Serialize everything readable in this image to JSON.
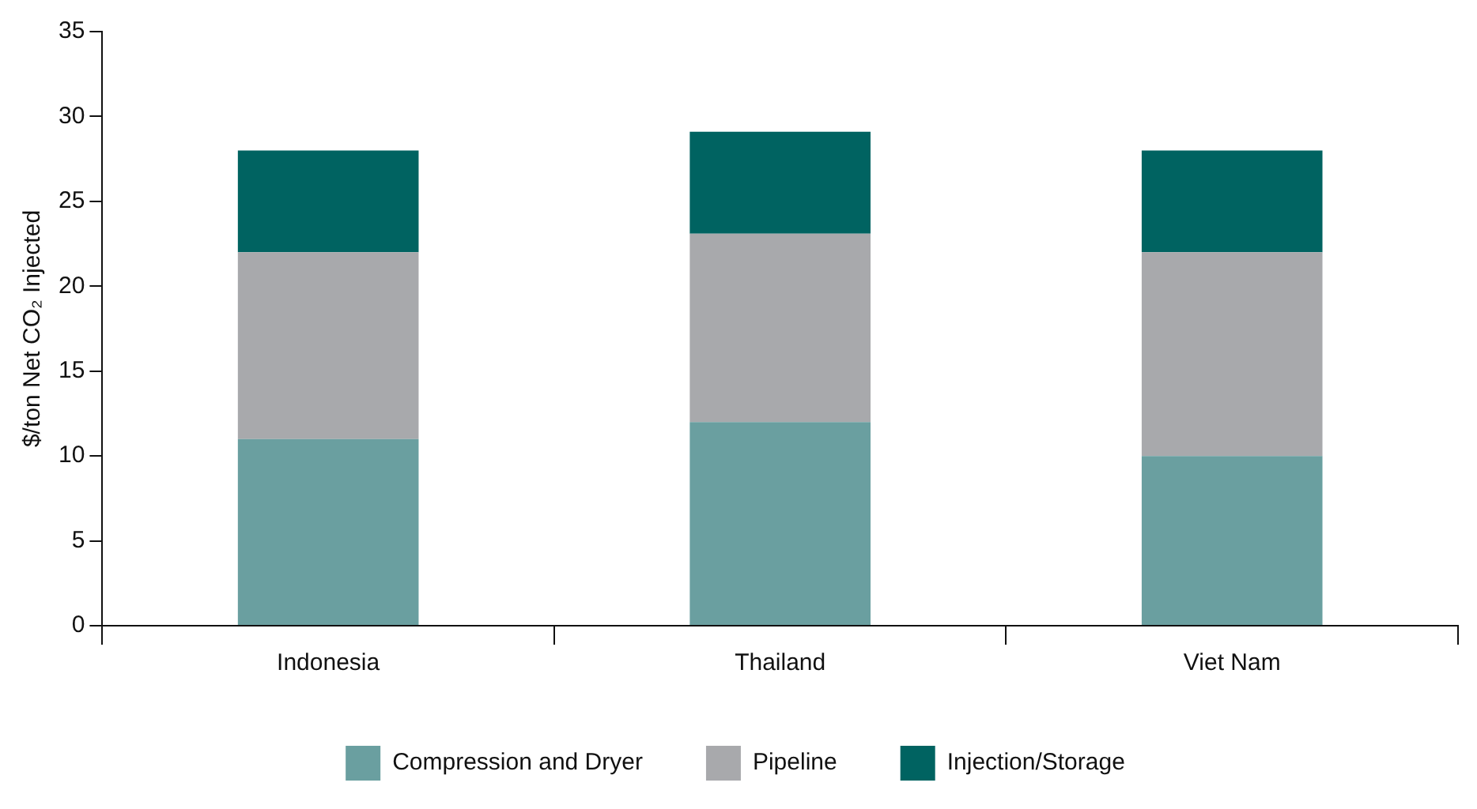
{
  "chart_data": {
    "type": "bar",
    "stacked": true,
    "ylabel": "$/ton Net CO₂ Injected",
    "categories": [
      "Indonesia",
      "Thailand",
      "Viet Nam"
    ],
    "series": [
      {
        "name": "Compression and Dryer",
        "color": "#6a9fa0",
        "values": [
          11,
          12,
          10
        ]
      },
      {
        "name": "Pipeline",
        "color": "#a8a9ac",
        "values": [
          11,
          11.1,
          12
        ]
      },
      {
        "name": "Injection/Storage",
        "color": "#006361",
        "values": [
          6,
          6,
          6
        ]
      }
    ],
    "ylim": [
      0,
      35
    ],
    "yticks": [
      0,
      5,
      10,
      15,
      20,
      25,
      30,
      35
    ],
    "grid": false,
    "legend": "bottom"
  }
}
